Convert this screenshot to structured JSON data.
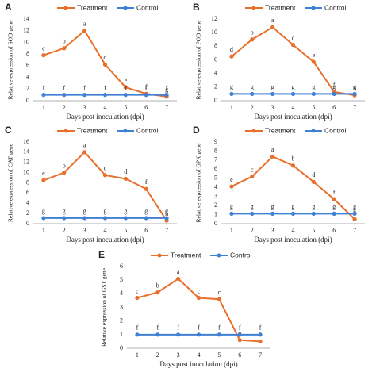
{
  "chart_data": [
    {
      "type": "line",
      "panel": "A",
      "ylabel": "Relative expression of SOD gene",
      "xlabel": "Days post inoculation (dpi)",
      "categories": [
        "1",
        "2",
        "3",
        "4",
        "5",
        "6",
        "7"
      ],
      "ylim": [
        0,
        14
      ],
      "yticks": [
        0,
        2,
        4,
        6,
        8,
        10,
        12,
        14
      ],
      "series": [
        {
          "name": "Treatment",
          "color": "#e8702a",
          "values": [
            7.8,
            9.0,
            12.0,
            6.2,
            2.3,
            1.2,
            0.7
          ],
          "letters": [
            "c",
            "b",
            "a",
            "d",
            "e",
            "f",
            "g"
          ]
        },
        {
          "name": "Control",
          "color": "#3f7fd4",
          "values": [
            1.0,
            1.0,
            1.0,
            1.0,
            1.0,
            1.0,
            1.0
          ],
          "letters": [
            "f",
            "f",
            "f",
            "f",
            "f",
            "f",
            "f"
          ]
        }
      ]
    },
    {
      "type": "line",
      "panel": "B",
      "ylabel": "Relative expression of POD gene",
      "xlabel": "Days post inoculation (dpi)",
      "categories": [
        "1",
        "2",
        "3",
        "4",
        "5",
        "6",
        "7"
      ],
      "ylim": [
        0,
        12
      ],
      "yticks": [
        0,
        2,
        4,
        6,
        8,
        10,
        12
      ],
      "series": [
        {
          "name": "Treatment",
          "color": "#e8702a",
          "values": [
            6.5,
            9.0,
            10.8,
            8.2,
            5.7,
            1.3,
            0.8
          ],
          "letters": [
            "d",
            "b",
            "a",
            "c",
            "e",
            "f",
            "h"
          ]
        },
        {
          "name": "Control",
          "color": "#3f7fd4",
          "values": [
            1.0,
            1.0,
            1.0,
            1.0,
            1.0,
            1.0,
            1.0
          ],
          "letters": [
            "g",
            "g",
            "g",
            "g",
            "g",
            "g",
            "g"
          ]
        }
      ]
    },
    {
      "type": "line",
      "panel": "C",
      "ylabel": "Relative expression of CAT gene",
      "xlabel": "Days post inoculation (dpi)",
      "categories": [
        "1",
        "2",
        "3",
        "4",
        "5",
        "6",
        "7"
      ],
      "ylim": [
        0,
        16
      ],
      "yticks": [
        0,
        2,
        4,
        6,
        8,
        10,
        12,
        14,
        16
      ],
      "series": [
        {
          "name": "Treatment",
          "color": "#e8702a",
          "values": [
            8.5,
            10.0,
            14.0,
            9.5,
            8.8,
            6.8,
            0.6
          ],
          "letters": [
            "e",
            "b",
            "a",
            "c",
            "d",
            "f",
            "h"
          ]
        },
        {
          "name": "Control",
          "color": "#3f7fd4",
          "values": [
            1.1,
            1.1,
            1.1,
            1.1,
            1.1,
            1.1,
            1.1
          ],
          "letters": [
            "g",
            "g",
            "g",
            "g",
            "g",
            "g",
            "g"
          ]
        }
      ]
    },
    {
      "type": "line",
      "panel": "D",
      "ylabel": "Relative expression of GPX gene",
      "xlabel": "Days post inoculation (dpi)",
      "categories": [
        "1",
        "2",
        "3",
        "4",
        "5",
        "6",
        "7"
      ],
      "ylim": [
        0,
        9
      ],
      "yticks": [
        0,
        1,
        2,
        3,
        4,
        5,
        6,
        7,
        8,
        9
      ],
      "series": [
        {
          "name": "Treatment",
          "color": "#e8702a",
          "values": [
            4.1,
            5.2,
            7.4,
            6.4,
            4.6,
            2.7,
            0.5
          ],
          "letters": [
            "e",
            "c",
            "a",
            "b",
            "d",
            "f",
            "h"
          ]
        },
        {
          "name": "Control",
          "color": "#3f7fd4",
          "values": [
            1.1,
            1.1,
            1.1,
            1.1,
            1.1,
            1.1,
            1.1
          ],
          "letters": [
            "g",
            "g",
            "g",
            "g",
            "g",
            "g",
            "g"
          ]
        }
      ]
    },
    {
      "type": "line",
      "panel": "E",
      "ylabel": "Relative expression of GST gene",
      "xlabel": "Days post inoculation (dpi)",
      "categories": [
        "1",
        "2",
        "3",
        "4",
        "5",
        "6",
        "7"
      ],
      "ylim": [
        0,
        6
      ],
      "yticks": [
        0,
        1,
        2,
        3,
        4,
        5,
        6
      ],
      "series": [
        {
          "name": "Treatment",
          "color": "#e8702a",
          "values": [
            3.7,
            4.1,
            5.1,
            3.7,
            3.6,
            0.6,
            0.5
          ],
          "letters": [
            "c",
            "b",
            "a",
            "c",
            "c",
            "g",
            "h"
          ]
        },
        {
          "name": "Control",
          "color": "#3f7fd4",
          "values": [
            1.0,
            1.0,
            1.0,
            1.0,
            1.0,
            1.0,
            1.0
          ],
          "letters": [
            "f",
            "f",
            "f",
            "f",
            "f",
            "f",
            "f"
          ]
        }
      ]
    }
  ]
}
